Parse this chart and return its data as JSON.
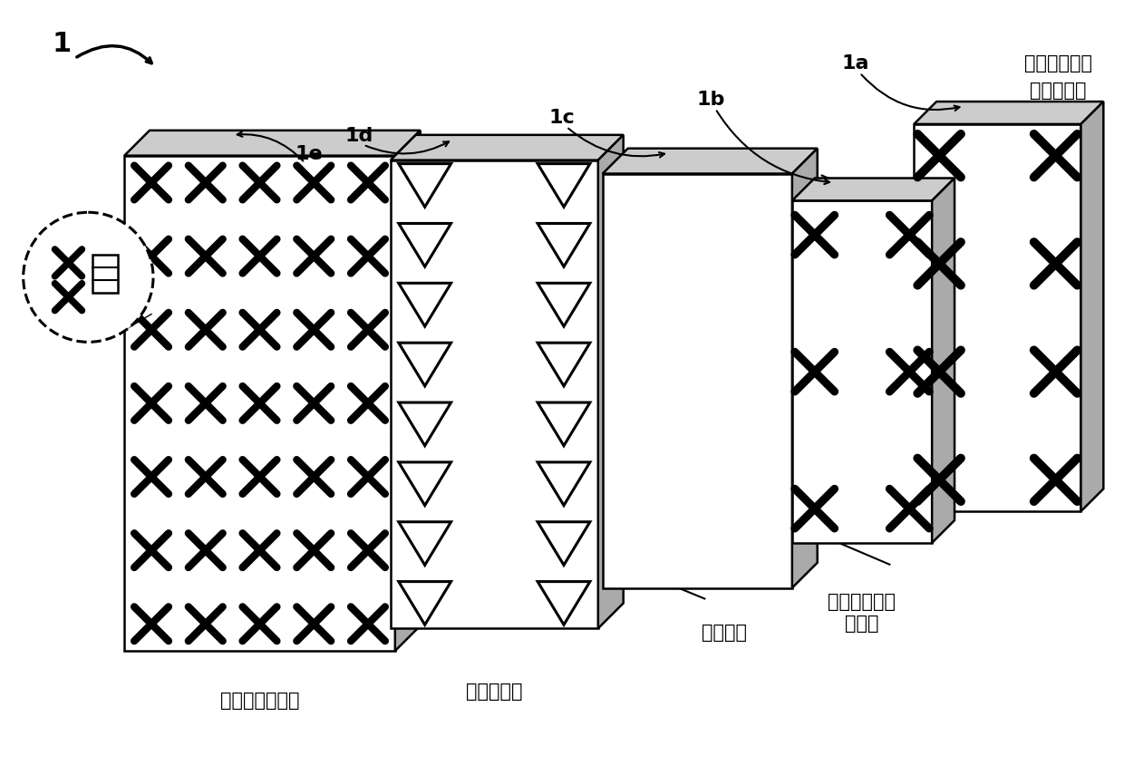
{
  "bg_color": "#ffffff",
  "label_1": "1",
  "label_1a": "1a",
  "label_1b": "1b",
  "label_1c": "1c",
  "label_1d": "1d",
  "label_1e": "1e",
  "text_top_right_line1": "形成在基带处",
  "text_top_right_line2": "的虚拟端口",
  "text_mid_right_line1": "从基带可访问",
  "text_mid_right_line2": "的端口",
  "text_bottom_left": "物理元件的阵列",
  "text_bottom_mid": "无线电阵列",
  "text_bottom_mid2": "端口减少"
}
